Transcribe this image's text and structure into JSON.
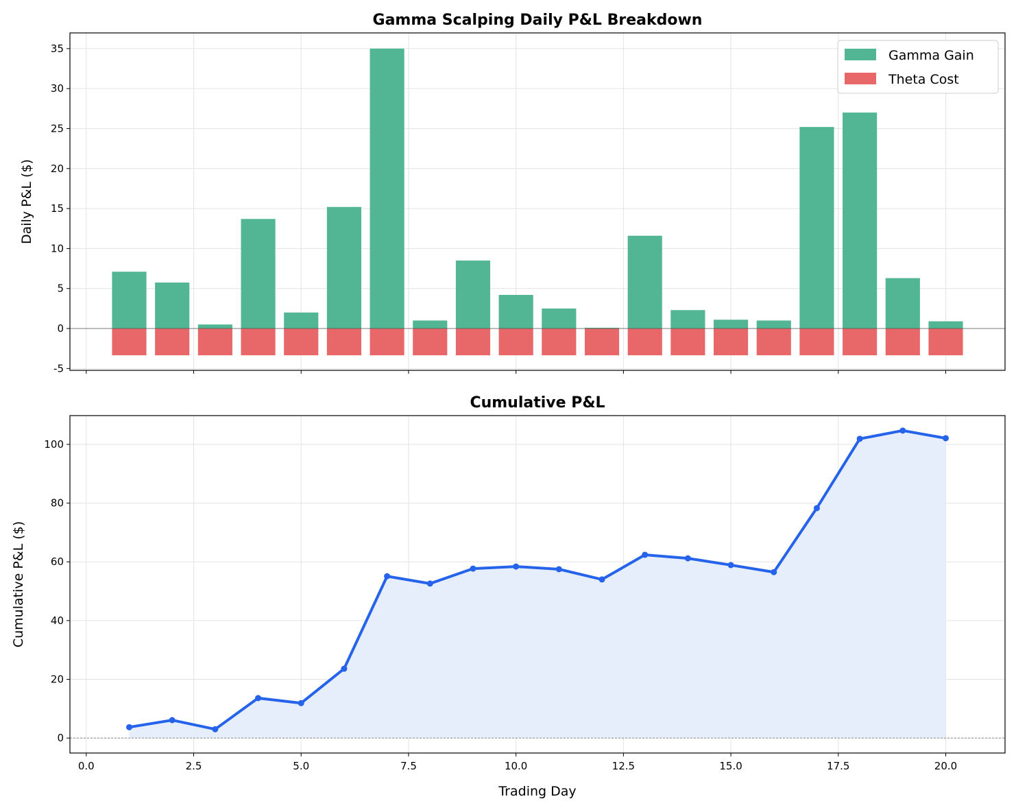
{
  "chart_data": [
    {
      "type": "bar",
      "title": "Gamma Scalping Daily P&L Breakdown",
      "xlabel": "",
      "ylabel": "Daily P&L ($)",
      "x": [
        1,
        2,
        3,
        4,
        5,
        6,
        7,
        8,
        9,
        10,
        11,
        12,
        13,
        14,
        15,
        16,
        17,
        18,
        19,
        20
      ],
      "series": [
        {
          "name": "Gamma Gain",
          "color": "#52b594",
          "values": [
            7.1,
            5.75,
            0.5,
            13.7,
            2.0,
            15.2,
            35.0,
            1.0,
            8.5,
            4.2,
            2.5,
            0.1,
            11.6,
            2.3,
            1.1,
            1.0,
            25.2,
            27.0,
            6.3,
            0.9
          ]
        },
        {
          "name": "Theta Cost",
          "color": "#e8686a",
          "values": [
            -3.35,
            -3.35,
            -3.35,
            -3.35,
            -3.35,
            -3.35,
            -3.35,
            -3.35,
            -3.35,
            -3.35,
            -3.35,
            -3.35,
            -3.35,
            -3.35,
            -3.35,
            -3.35,
            -3.35,
            -3.35,
            -3.35,
            -3.35
          ]
        }
      ],
      "xlim": [
        -0.38,
        21.38
      ],
      "ylim": [
        -5.23,
        36.96
      ],
      "yticks": [
        -5,
        0,
        5,
        10,
        15,
        20,
        25,
        30,
        35
      ],
      "ytick_labels": [
        "-5",
        "0",
        "5",
        "10",
        "15",
        "20",
        "25",
        "30",
        "35"
      ],
      "xticks": [
        0,
        2.5,
        5,
        7.5,
        10,
        12.5,
        15,
        17.5,
        20
      ],
      "grid": true,
      "legend": "top-right"
    },
    {
      "type": "line",
      "title": "Cumulative P&L",
      "xlabel": "Trading Day",
      "ylabel": "Cumulative P&L ($)",
      "x": [
        1,
        2,
        3,
        4,
        5,
        6,
        7,
        8,
        9,
        10,
        11,
        12,
        13,
        14,
        15,
        16,
        17,
        18,
        19,
        20
      ],
      "values": [
        3.7,
        6.1,
        3.0,
        13.6,
        11.9,
        23.6,
        55.1,
        52.6,
        57.7,
        58.4,
        57.5,
        54.0,
        62.4,
        61.2,
        58.9,
        56.5,
        78.3,
        101.9,
        104.7,
        102.1
      ],
      "color": "#2563eb",
      "fill": "#e6eefc",
      "xlim": [
        -0.38,
        21.38
      ],
      "ylim": [
        -5.1,
        109.8
      ],
      "yticks": [
        0,
        20,
        40,
        60,
        80,
        100
      ],
      "ytick_labels": [
        "0",
        "20",
        "40",
        "60",
        "80",
        "100"
      ],
      "xticks": [
        0,
        2.5,
        5,
        7.5,
        10,
        12.5,
        15,
        17.5,
        20
      ],
      "xtick_labels": [
        "0.0",
        "2.5",
        "5.0",
        "7.5",
        "10.0",
        "12.5",
        "15.0",
        "17.5",
        "20.0"
      ],
      "grid": true
    }
  ]
}
